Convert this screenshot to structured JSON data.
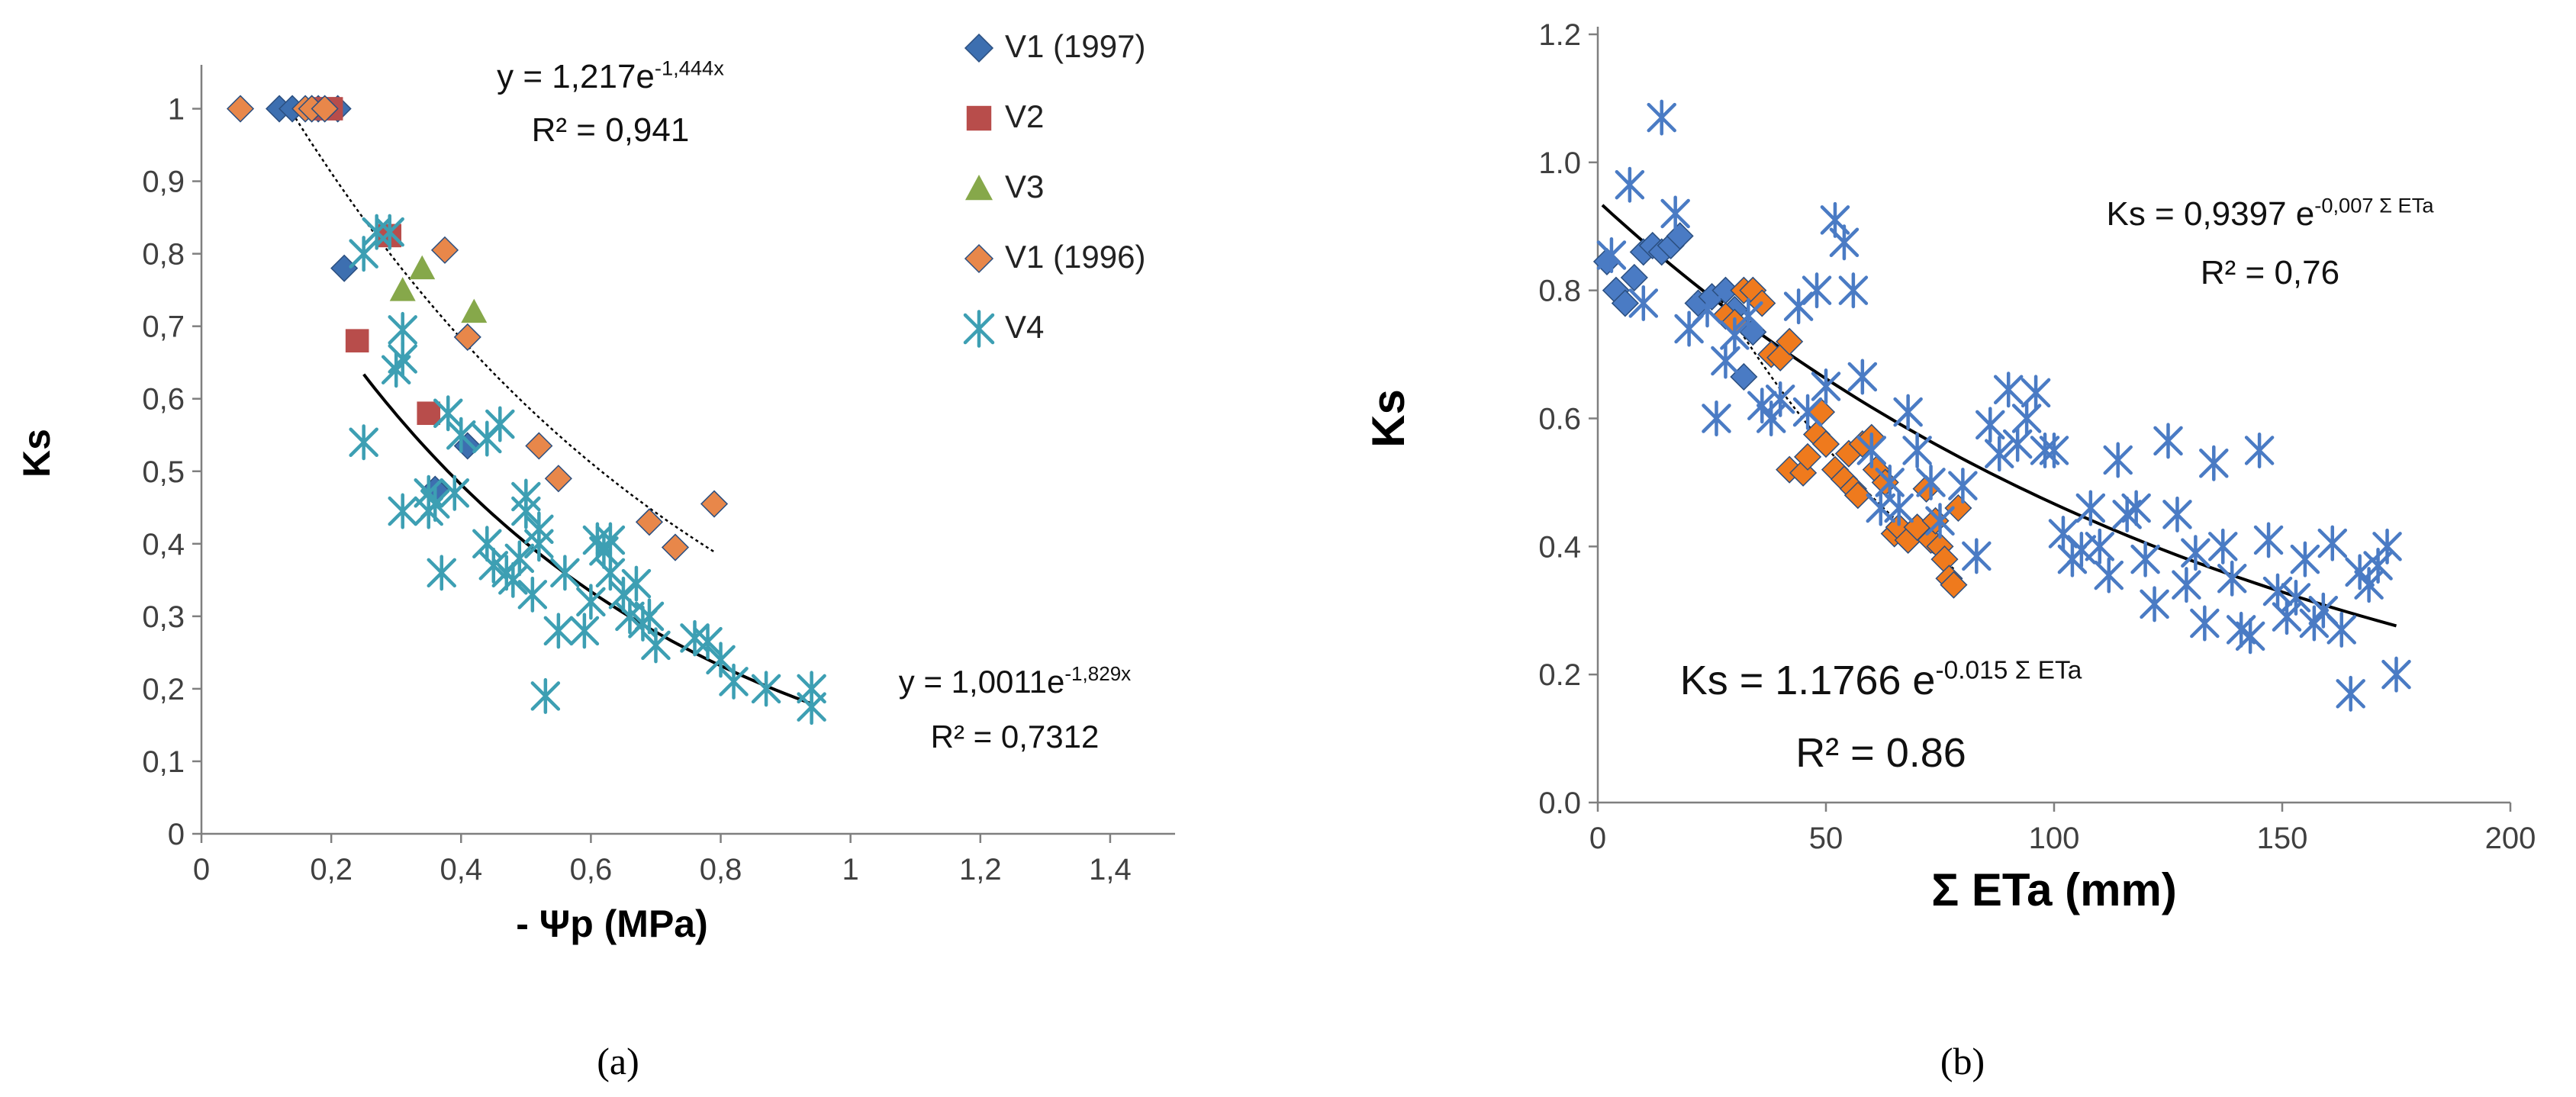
{
  "chart_data": [
    {
      "type": "scatter",
      "panel_label": "(a)",
      "xlabel": "- Ψp (MPa)",
      "ylabel": "Ks",
      "xlim": [
        0,
        1.5
      ],
      "ylim": [
        0,
        1.05
      ],
      "x_ticks": [
        "0",
        "0,2",
        "0,4",
        "0,6",
        "0,8",
        "1",
        "1,2",
        "1,4"
      ],
      "y_ticks": [
        "0",
        "0,1",
        "0,2",
        "0,3",
        "0,4",
        "0,5",
        "0,6",
        "0,7",
        "0,8",
        "0,9",
        "1"
      ],
      "legend_position": "top-right",
      "series": [
        {
          "name": "V1 (1997)",
          "marker": "diamond",
          "color": "#3d6fb0",
          "points": [
            [
              0.12,
              1.0
            ],
            [
              0.14,
              1.0
            ],
            [
              0.17,
              1.0
            ],
            [
              0.18,
              1.0
            ],
            [
              0.21,
              1.0
            ],
            [
              0.22,
              0.78
            ],
            [
              0.41,
              0.535
            ],
            [
              0.36,
              0.475
            ]
          ]
        },
        {
          "name": "V2",
          "marker": "square",
          "color": "#b84d4b",
          "points": [
            [
              0.19,
              1.0
            ],
            [
              0.2,
              1.0
            ],
            [
              0.29,
              0.825
            ],
            [
              0.24,
              0.68
            ],
            [
              0.35,
              0.58
            ]
          ]
        },
        {
          "name": "V3",
          "marker": "triangle",
          "color": "#86a84a",
          "points": [
            [
              0.31,
              0.75
            ],
            [
              0.34,
              0.78
            ],
            [
              0.42,
              0.72
            ]
          ]
        },
        {
          "name": "V1 (1996)",
          "marker": "diamond",
          "color": "#e8874a",
          "points": [
            [
              0.06,
              1.0
            ],
            [
              0.16,
              1.0
            ],
            [
              0.17,
              1.0
            ],
            [
              0.19,
              1.0
            ],
            [
              0.375,
              0.805
            ],
            [
              0.41,
              0.685
            ],
            [
              0.52,
              0.535
            ],
            [
              0.55,
              0.49
            ],
            [
              0.69,
              0.43
            ],
            [
              0.73,
              0.395
            ],
            [
              0.79,
              0.455
            ]
          ]
        },
        {
          "name": "V4",
          "marker": "star",
          "color": "#3d9fb3",
          "points": [
            [
              0.25,
              0.8
            ],
            [
              0.27,
              0.83
            ],
            [
              0.29,
              0.83
            ],
            [
              0.25,
              0.54
            ],
            [
              0.3,
              0.64
            ],
            [
              0.31,
              0.655
            ],
            [
              0.31,
              0.695
            ],
            [
              0.31,
              0.445
            ],
            [
              0.35,
              0.445
            ],
            [
              0.35,
              0.47
            ],
            [
              0.36,
              0.455
            ],
            [
              0.37,
              0.36
            ],
            [
              0.38,
              0.58
            ],
            [
              0.39,
              0.47
            ],
            [
              0.4,
              0.55
            ],
            [
              0.44,
              0.545
            ],
            [
              0.44,
              0.4
            ],
            [
              0.45,
              0.37
            ],
            [
              0.46,
              0.565
            ],
            [
              0.47,
              0.36
            ],
            [
              0.48,
              0.35
            ],
            [
              0.49,
              0.38
            ],
            [
              0.5,
              0.465
            ],
            [
              0.5,
              0.445
            ],
            [
              0.51,
              0.33
            ],
            [
              0.52,
              0.4
            ],
            [
              0.52,
              0.42
            ],
            [
              0.53,
              0.19
            ],
            [
              0.55,
              0.28
            ],
            [
              0.56,
              0.36
            ],
            [
              0.59,
              0.28
            ],
            [
              0.6,
              0.32
            ],
            [
              0.61,
              0.405
            ],
            [
              0.62,
              0.39
            ],
            [
              0.63,
              0.405
            ],
            [
              0.63,
              0.36
            ],
            [
              0.65,
              0.33
            ],
            [
              0.66,
              0.3
            ],
            [
              0.67,
              0.345
            ],
            [
              0.68,
              0.29
            ],
            [
              0.69,
              0.3
            ],
            [
              0.7,
              0.26
            ],
            [
              0.76,
              0.27
            ],
            [
              0.78,
              0.265
            ],
            [
              0.8,
              0.24
            ],
            [
              0.82,
              0.21
            ],
            [
              0.87,
              0.2
            ],
            [
              0.94,
              0.2
            ],
            [
              0.94,
              0.175
            ]
          ]
        }
      ],
      "trendlines": [
        {
          "equation": "y = 1,217e",
          "exponent": "-1,444x",
          "r2": "R² = 0,941",
          "a": 1.217,
          "b": -1.444,
          "x_range": [
            0.14,
            0.79
          ],
          "style": "dotted"
        },
        {
          "equation": "y = 1,0011e",
          "exponent": "-1,829x",
          "r2": "R² = 0,7312",
          "a": 1.0011,
          "b": -1.829,
          "x_range": [
            0.25,
            0.94
          ],
          "style": "solid"
        }
      ]
    },
    {
      "type": "scatter",
      "panel_label": "(b)",
      "xlabel": "Σ ETa (mm)",
      "ylabel": "Ks",
      "xlim": [
        0,
        200
      ],
      "ylim": [
        0,
        1.2
      ],
      "x_ticks": [
        "0",
        "50",
        "100",
        "150",
        "200"
      ],
      "y_ticks": [
        "0.0",
        "0.2",
        "0.4",
        "0.6",
        "0.8",
        "1.0",
        "1.2"
      ],
      "series": [
        {
          "name": "blue diamonds",
          "marker": "diamond",
          "color": "#4a7bc4",
          "points": [
            [
              2,
              0.845
            ],
            [
              4,
              0.8
            ],
            [
              6,
              0.78
            ],
            [
              8,
              0.82
            ],
            [
              10,
              0.86
            ],
            [
              12,
              0.87
            ],
            [
              14,
              0.86
            ],
            [
              16,
              0.87
            ],
            [
              18,
              0.885
            ],
            [
              22,
              0.78
            ],
            [
              25,
              0.79
            ],
            [
              28,
              0.8
            ],
            [
              30,
              0.77
            ],
            [
              32,
              0.665
            ],
            [
              34,
              0.735
            ]
          ]
        },
        {
          "name": "orange diamonds",
          "marker": "diamond",
          "color": "#ef7a1d",
          "points": [
            [
              28,
              0.76
            ],
            [
              30,
              0.75
            ],
            [
              32,
              0.8
            ],
            [
              34,
              0.8
            ],
            [
              36,
              0.78
            ],
            [
              38,
              0.7
            ],
            [
              40,
              0.695
            ],
            [
              42,
              0.72
            ],
            [
              42,
              0.52
            ],
            [
              45,
              0.515
            ],
            [
              46,
              0.54
            ],
            [
              48,
              0.575
            ],
            [
              49,
              0.61
            ],
            [
              50,
              0.56
            ],
            [
              52,
              0.52
            ],
            [
              54,
              0.505
            ],
            [
              55,
              0.545
            ],
            [
              56,
              0.49
            ],
            [
              57,
              0.48
            ],
            [
              58,
              0.56
            ],
            [
              60,
              0.57
            ],
            [
              61,
              0.52
            ],
            [
              63,
              0.5
            ],
            [
              65,
              0.42
            ],
            [
              66,
              0.43
            ],
            [
              68,
              0.41
            ],
            [
              70,
              0.43
            ],
            [
              72,
              0.49
            ],
            [
              73,
              0.41
            ],
            [
              74,
              0.44
            ],
            [
              75,
              0.4
            ],
            [
              76,
              0.38
            ],
            [
              77,
              0.35
            ],
            [
              78,
              0.34
            ],
            [
              79,
              0.46
            ]
          ]
        },
        {
          "name": "blue stars",
          "marker": "star",
          "color": "#4a7bc4",
          "points": [
            [
              3,
              0.855
            ],
            [
              7,
              0.965
            ],
            [
              10,
              0.78
            ],
            [
              14,
              1.07
            ],
            [
              17,
              0.92
            ],
            [
              20,
              0.74
            ],
            [
              24,
              0.77
            ],
            [
              26,
              0.6
            ],
            [
              28,
              0.69
            ],
            [
              30,
              0.73
            ],
            [
              33,
              0.76
            ],
            [
              36,
              0.62
            ],
            [
              38,
              0.6
            ],
            [
              40,
              0.63
            ],
            [
              44,
              0.775
            ],
            [
              46,
              0.61
            ],
            [
              48,
              0.8
            ],
            [
              50,
              0.65
            ],
            [
              52,
              0.91
            ],
            [
              54,
              0.875
            ],
            [
              56,
              0.8
            ],
            [
              58,
              0.665
            ],
            [
              60,
              0.55
            ],
            [
              62,
              0.46
            ],
            [
              64,
              0.5
            ],
            [
              66,
              0.46
            ],
            [
              68,
              0.61
            ],
            [
              70,
              0.55
            ],
            [
              73,
              0.5
            ],
            [
              75,
              0.44
            ],
            [
              80,
              0.495
            ],
            [
              83,
              0.385
            ],
            [
              86,
              0.59
            ],
            [
              88,
              0.545
            ],
            [
              90,
              0.645
            ],
            [
              92,
              0.56
            ],
            [
              94,
              0.6
            ],
            [
              96,
              0.64
            ],
            [
              98,
              0.55
            ],
            [
              100,
              0.55
            ],
            [
              102,
              0.42
            ],
            [
              104,
              0.38
            ],
            [
              106,
              0.395
            ],
            [
              108,
              0.46
            ],
            [
              110,
              0.4
            ],
            [
              112,
              0.355
            ],
            [
              114,
              0.535
            ],
            [
              116,
              0.45
            ],
            [
              118,
              0.46
            ],
            [
              120,
              0.38
            ],
            [
              122,
              0.31
            ],
            [
              125,
              0.565
            ],
            [
              127,
              0.45
            ],
            [
              129,
              0.34
            ],
            [
              131,
              0.39
            ],
            [
              133,
              0.28
            ],
            [
              135,
              0.53
            ],
            [
              137,
              0.4
            ],
            [
              139,
              0.35
            ],
            [
              141,
              0.27
            ],
            [
              143,
              0.26
            ],
            [
              145,
              0.55
            ],
            [
              147,
              0.41
            ],
            [
              149,
              0.33
            ],
            [
              151,
              0.29
            ],
            [
              153,
              0.32
            ],
            [
              155,
              0.38
            ],
            [
              157,
              0.28
            ],
            [
              159,
              0.3
            ],
            [
              161,
              0.405
            ],
            [
              163,
              0.27
            ],
            [
              165,
              0.17
            ],
            [
              167,
              0.36
            ],
            [
              169,
              0.34
            ],
            [
              171,
              0.37
            ],
            [
              173,
              0.4
            ],
            [
              175,
              0.2
            ]
          ]
        }
      ],
      "trendlines": [
        {
          "equation": "Ks = 0,9397 e",
          "exponent": "-0,007 Σ ETa",
          "r2": "R² = 0,76",
          "a": 0.9397,
          "b": -0.007,
          "x_range": [
            1,
            175
          ],
          "style": "solid"
        },
        {
          "equation": "Ks = 1.1766 e",
          "exponent": "-0.015 Σ ETa",
          "r2": "R² = 0.86",
          "a": 1.1766,
          "b": -0.015,
          "x_range": [
            25,
            78
          ],
          "style": "dotted"
        }
      ]
    }
  ]
}
